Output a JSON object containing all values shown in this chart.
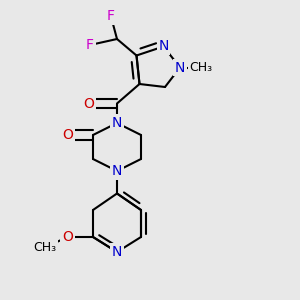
{
  "bg_color": "#e8e8e8",
  "bond_color": "#000000",
  "lw": 1.5,
  "atom_colors": {
    "N": "#0000cc",
    "O": "#cc0000",
    "F": "#cc00cc",
    "C": "#000000"
  },
  "fs": 9.5
}
